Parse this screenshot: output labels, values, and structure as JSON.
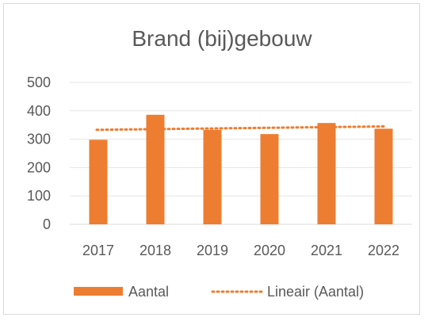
{
  "chart_data": {
    "type": "bar",
    "title": "Brand (bij)gebouw",
    "xlabel": "",
    "ylabel": "",
    "categories": [
      "2017",
      "2018",
      "2019",
      "2020",
      "2021",
      "2022"
    ],
    "series": [
      {
        "name": "Aantal",
        "values": [
          298,
          386,
          333,
          318,
          357,
          337
        ],
        "color": "#ed7d31"
      }
    ],
    "trendline": {
      "name": "Lineair (Aantal)",
      "type": "linear",
      "values": [
        333,
        336,
        339,
        341,
        343,
        345
      ],
      "color": "#ed7d31",
      "style": "dotted"
    },
    "ylim": [
      0,
      500
    ],
    "yticks": [
      "0",
      "100",
      "200",
      "300",
      "400",
      "500"
    ],
    "grid": true,
    "legend_position": "bottom"
  }
}
